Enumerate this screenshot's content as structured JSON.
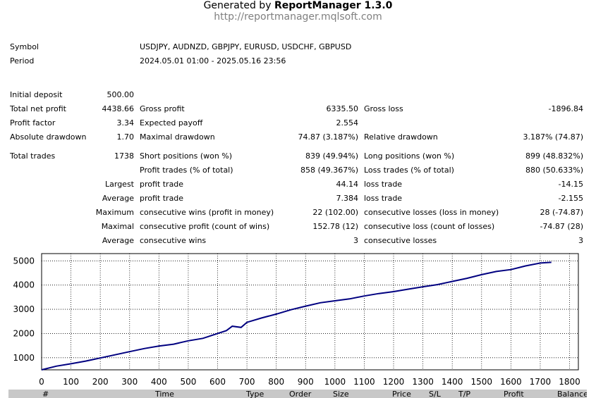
{
  "header": {
    "generated_prefix": "Generated by",
    "generated_product": "ReportManager 1.3.0",
    "url": "http://reportmanager.mqlsoft.com"
  },
  "info": {
    "symbol_label": "Symbol",
    "symbol_value": "USDJPY, AUDNZD, GBPJPY, EURUSD, USDCHF, GBPUSD",
    "period_label": "Period",
    "period_value": "2024.05.01 01:00 - 2025.05.16 23:56"
  },
  "stats": {
    "initial_deposit_label": "Initial deposit",
    "initial_deposit": "500.00",
    "total_net_profit_label": "Total net profit",
    "total_net_profit": "4438.66",
    "gross_profit_label": "Gross profit",
    "gross_profit": "6335.50",
    "gross_loss_label": "Gross loss",
    "gross_loss": "-1896.84",
    "profit_factor_label": "Profit factor",
    "profit_factor": "3.34",
    "expected_payoff_label": "Expected payoff",
    "expected_payoff": "2.554",
    "absolute_drawdown_label": "Absolute drawdown",
    "absolute_drawdown": "1.70",
    "maximal_drawdown_label": "Maximal drawdown",
    "maximal_drawdown": "74.87 (3.187%)",
    "relative_drawdown_label": "Relative drawdown",
    "relative_drawdown": "3.187% (74.87)",
    "total_trades_label": "Total trades",
    "total_trades": "1738",
    "short_positions_label": "Short positions (won %)",
    "short_positions": "839 (49.94%)",
    "long_positions_label": "Long positions (won %)",
    "long_positions": "899 (48.832%)",
    "profit_trades_label": "Profit trades (% of total)",
    "profit_trades": "858 (49.367%)",
    "loss_trades_label": "Loss trades (% of total)",
    "loss_trades": "880 (50.633%)",
    "largest_label": "Largest",
    "largest_profit_label": "profit trade",
    "largest_profit": "44.14",
    "largest_loss_label": "loss trade",
    "largest_loss": "-14.15",
    "average_label": "Average",
    "average_profit_label": "profit trade",
    "average_profit": "7.384",
    "average_loss_label": "loss trade",
    "average_loss": "-2.155",
    "maximum_label": "Maximum",
    "max_cons_wins_label": "consecutive wins (profit in money)",
    "max_cons_wins": "22 (102.00)",
    "max_cons_losses_label": "consecutive losses (loss in money)",
    "max_cons_losses": "28 (-74.87)",
    "maximal_label": "Maximal",
    "maximal_cons_profit_label": "consecutive profit (count of wins)",
    "maximal_cons_profit": "152.78 (12)",
    "maximal_cons_loss_label": "consecutive loss (count of losses)",
    "maximal_cons_loss": "-74.87 (28)",
    "average2_label": "Average",
    "avg_cons_wins_label": "consecutive wins",
    "avg_cons_wins": "3",
    "avg_cons_losses_label": "consecutive losses",
    "avg_cons_losses": "3"
  },
  "chart_data": {
    "type": "line",
    "title": "",
    "xlabel": "",
    "ylabel": "",
    "xlim": [
      0,
      1830
    ],
    "ylim": [
      500,
      5300
    ],
    "x_ticks": [
      0,
      100,
      200,
      300,
      400,
      500,
      600,
      700,
      800,
      900,
      1000,
      1100,
      1200,
      1300,
      1400,
      1500,
      1600,
      1700,
      1800
    ],
    "y_ticks": [
      1000,
      2000,
      3000,
      4000,
      5000
    ],
    "grid": true,
    "line_color": "#000080",
    "series": [
      {
        "x": [
          0,
          50,
          100,
          150,
          200,
          250,
          300,
          350,
          400,
          450,
          500,
          550,
          600,
          630,
          650,
          680,
          700,
          750,
          800,
          850,
          900,
          950,
          1000,
          1050,
          1100,
          1150,
          1200,
          1250,
          1300,
          1350,
          1400,
          1450,
          1500,
          1550,
          1600,
          1650,
          1700,
          1738
        ],
        "y": [
          500,
          650,
          750,
          860,
          990,
          1120,
          1250,
          1380,
          1480,
          1560,
          1700,
          1800,
          2000,
          2120,
          2300,
          2250,
          2460,
          2640,
          2800,
          2980,
          3130,
          3270,
          3350,
          3430,
          3550,
          3650,
          3730,
          3830,
          3930,
          4020,
          4150,
          4280,
          4430,
          4560,
          4640,
          4790,
          4910,
          4939
        ]
      }
    ]
  },
  "table_header": {
    "num": "#",
    "time": "Time",
    "type": "Type",
    "order": "Order",
    "size": "Size",
    "price": "Price",
    "sl": "S/L",
    "tp": "T/P",
    "profit": "Profit",
    "balance": "Balance"
  }
}
